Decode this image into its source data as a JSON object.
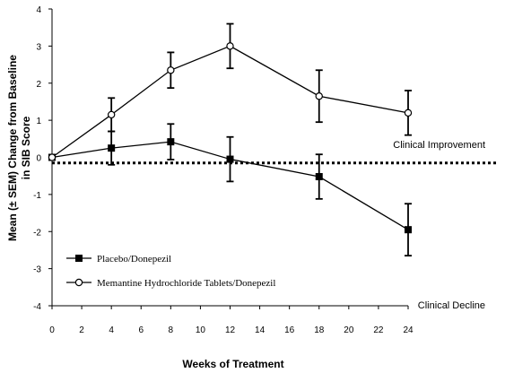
{
  "chart_data": {
    "type": "line",
    "title": "",
    "xlabel": "Weeks of Treatment",
    "ylabel": [
      "Mean (± SEM) Change from Baseline",
      "in SIB Score"
    ],
    "xlim": [
      0,
      24
    ],
    "ylim": [
      -4,
      4
    ],
    "xticks": [
      0,
      2,
      4,
      6,
      8,
      10,
      12,
      14,
      16,
      18,
      20,
      22,
      24
    ],
    "xtick_labels": [
      "0",
      "2",
      "4",
      "6",
      "8",
      "10",
      "12",
      "14",
      "16",
      "18",
      "20",
      "22",
      "24"
    ],
    "yticks": [
      -4,
      -3,
      -2,
      -1,
      0,
      1,
      2,
      3,
      4
    ],
    "ytick_labels": [
      "-4",
      "-3",
      "-2",
      "-1",
      "0",
      "1",
      "2",
      "3",
      "4"
    ],
    "grid": false,
    "legend_position": "bottom-left",
    "reference_line": {
      "y": -0.15,
      "style": "dotted"
    },
    "annotations": [
      {
        "text": "Clinical Improvement",
        "x": 23.5,
        "y": 0.35
      },
      {
        "text": "Clinical Decline",
        "x": 23.5,
        "y": -4
      }
    ],
    "series": [
      {
        "name": "Placebo/Donepezil",
        "marker": "filled-square",
        "x": [
          0,
          4,
          8,
          12,
          18,
          24
        ],
        "y": [
          0,
          0.25,
          0.42,
          -0.05,
          -0.52,
          -1.95
        ],
        "err": [
          0,
          0.45,
          0.48,
          0.6,
          0.6,
          0.7
        ]
      },
      {
        "name": "Memantine Hydrochloride Tablets/Donepezil",
        "marker": "open-circle",
        "x": [
          0,
          4,
          8,
          12,
          18,
          24
        ],
        "y": [
          0,
          1.15,
          2.35,
          3.0,
          1.65,
          1.2
        ],
        "err": [
          0,
          0.45,
          0.48,
          0.6,
          0.7,
          0.6
        ]
      }
    ]
  }
}
